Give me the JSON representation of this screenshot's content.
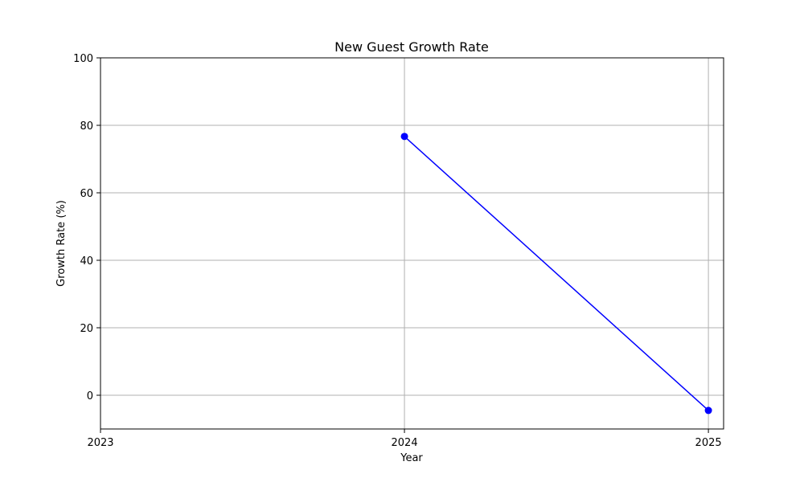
{
  "chart_data": {
    "type": "line",
    "title": "New Guest Growth Rate",
    "xlabel": "Year",
    "ylabel": "Growth Rate (%)",
    "x_categories": [
      "2023",
      "2024",
      "2025"
    ],
    "xlim": [
      2023,
      2025.05
    ],
    "ylim": [
      -10,
      100
    ],
    "y_ticks": [
      0,
      20,
      40,
      60,
      80,
      100
    ],
    "grid": true,
    "series": [
      {
        "color": "#0000ff",
        "marker": "circle",
        "x": [
          2024,
          2025
        ],
        "y": [
          76.7,
          -4.5
        ]
      }
    ]
  }
}
